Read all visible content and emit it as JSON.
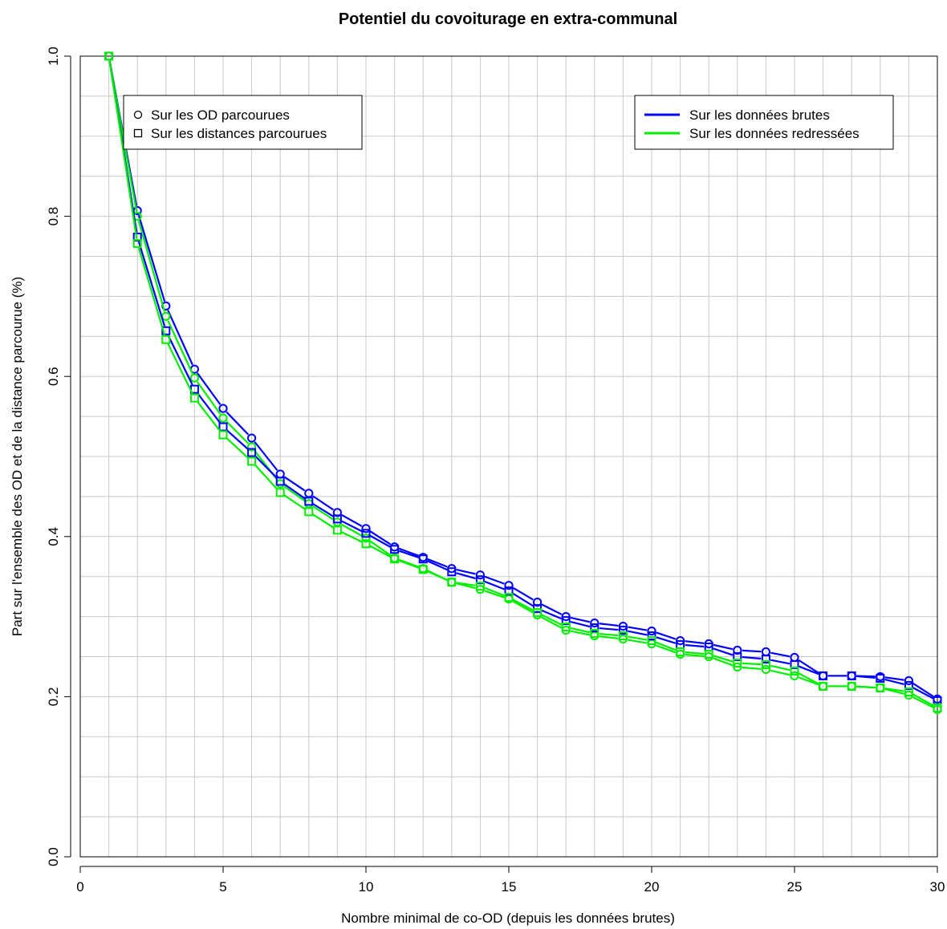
{
  "chart_data": {
    "type": "line",
    "title": "Potentiel du covoiturage en extra-communal",
    "xlabel": "Nombre minimal de co-OD (depuis les données brutes)",
    "ylabel": "Part sur l'ensemble des OD et de la distance parcourue (%)",
    "xlim": [
      0,
      30
    ],
    "ylim": [
      0,
      1
    ],
    "xticks": [
      "0",
      "5",
      "10",
      "15",
      "20",
      "25",
      "30"
    ],
    "yticks": [
      "0.0",
      "0.2",
      "0.4",
      "0.6",
      "0.8",
      "1.0"
    ],
    "grid": true,
    "x": [
      1,
      2,
      3,
      4,
      5,
      6,
      7,
      8,
      9,
      10,
      11,
      12,
      13,
      14,
      15,
      16,
      17,
      18,
      19,
      20,
      21,
      22,
      23,
      24,
      25,
      26,
      27,
      28,
      29,
      30
    ],
    "series": [
      {
        "name": "Sur les OD parcourues",
        "data_source": "Sur les données brutes",
        "color": "#0000ff",
        "marker": "circle",
        "values": [
          1.0,
          0.807,
          0.688,
          0.609,
          0.56,
          0.523,
          0.478,
          0.454,
          0.43,
          0.41,
          0.387,
          0.374,
          0.36,
          0.352,
          0.339,
          0.318,
          0.3,
          0.292,
          0.288,
          0.282,
          0.27,
          0.266,
          0.258,
          0.256,
          0.249,
          0.226,
          0.226,
          0.225,
          0.22,
          0.197
        ]
      },
      {
        "name": "Sur les OD parcourues",
        "data_source": "Sur les données redressées",
        "color": "#00ee00",
        "marker": "circle",
        "values": [
          1.0,
          0.8,
          0.675,
          0.598,
          0.548,
          0.512,
          0.466,
          0.441,
          0.418,
          0.398,
          0.373,
          0.36,
          0.343,
          0.334,
          0.322,
          0.302,
          0.283,
          0.276,
          0.272,
          0.266,
          0.253,
          0.25,
          0.237,
          0.234,
          0.226,
          0.213,
          0.213,
          0.211,
          0.202,
          0.184
        ]
      },
      {
        "name": "Sur les distances parcourues",
        "data_source": "Sur les données brutes",
        "color": "#0000ff",
        "marker": "square",
        "values": [
          1.0,
          0.774,
          0.657,
          0.584,
          0.537,
          0.505,
          0.469,
          0.444,
          0.422,
          0.404,
          0.384,
          0.372,
          0.356,
          0.346,
          0.332,
          0.31,
          0.295,
          0.286,
          0.283,
          0.276,
          0.265,
          0.262,
          0.25,
          0.247,
          0.24,
          0.226,
          0.226,
          0.223,
          0.214,
          0.195
        ]
      },
      {
        "name": "Sur les distances parcourues",
        "data_source": "Sur les données redressées",
        "color": "#00ee00",
        "marker": "square",
        "values": [
          1.0,
          0.766,
          0.646,
          0.573,
          0.527,
          0.494,
          0.455,
          0.431,
          0.408,
          0.391,
          0.372,
          0.359,
          0.343,
          0.338,
          0.324,
          0.305,
          0.287,
          0.279,
          0.276,
          0.27,
          0.256,
          0.253,
          0.242,
          0.24,
          0.232,
          0.213,
          0.213,
          0.211,
          0.206,
          0.186
        ]
      }
    ],
    "legend_markers": {
      "placement": "top-left",
      "entries": [
        {
          "label": "Sur les OD parcourues",
          "marker": "circle"
        },
        {
          "label": "Sur les distances parcourues",
          "marker": "square"
        }
      ]
    },
    "legend_colors": {
      "placement": "top-right",
      "entries": [
        {
          "label": "Sur les données brutes",
          "color": "#0000ff"
        },
        {
          "label": "Sur les données redressées",
          "color": "#00ee00"
        }
      ]
    }
  }
}
